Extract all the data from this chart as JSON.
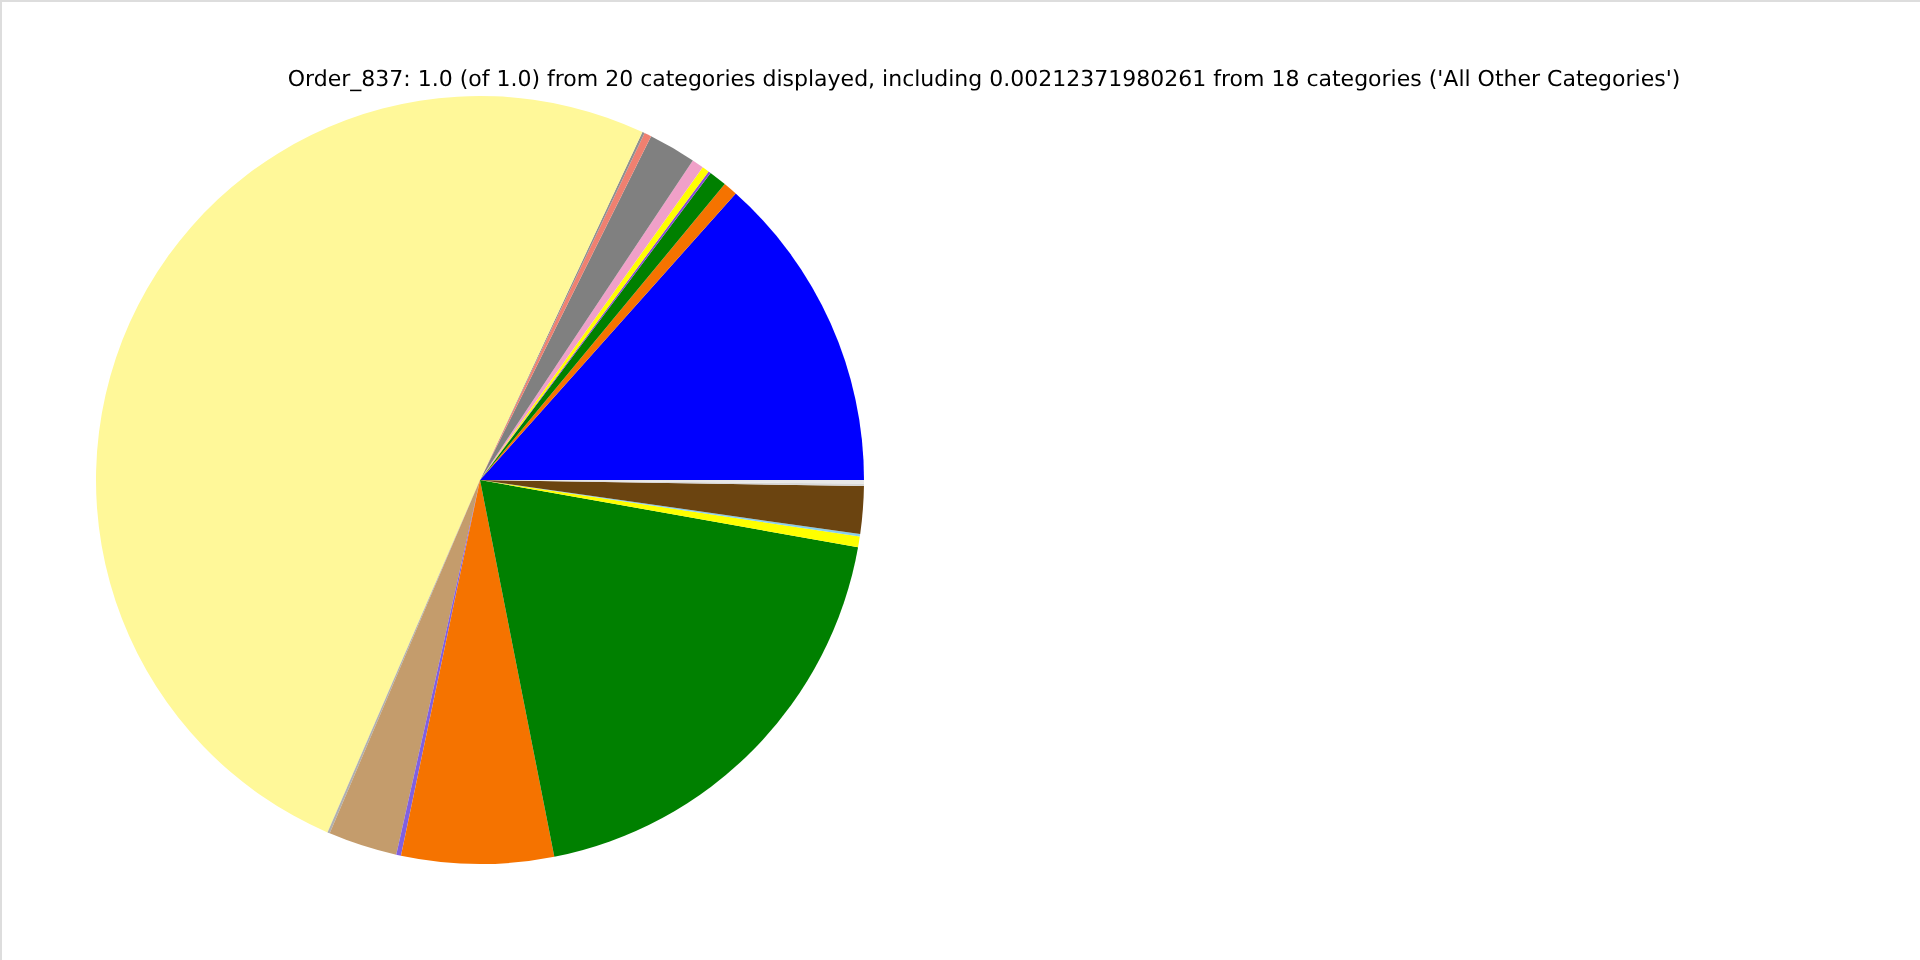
{
  "chart_data": {
    "type": "pie",
    "title": "Order_837: 1.0 (of 1.0) from 20 categories displayed, including 0.00212371980261 from 18 categories ('All Other Categories')",
    "categories": [
      null,
      null,
      null,
      null,
      null,
      null,
      null,
      null,
      null,
      null,
      null,
      null,
      null,
      null,
      null,
      null,
      null,
      null,
      null,
      null
    ],
    "values": [
      13.4,
      0.6,
      0.75,
      0.1,
      0.3,
      0.5,
      2.0,
      0.3,
      0.1,
      50.45,
      0.1,
      2.9,
      0.2,
      6.4,
      19.1,
      0.45,
      0.1,
      2.0,
      0.1,
      0.15
    ],
    "colors": [
      "#0000ff",
      "#f57300",
      "#008000",
      "#8a4bd8",
      "#ffff00",
      "#f0a0c8",
      "#808080",
      "#f08070",
      "#909090",
      "#fff899",
      "#b0b0b0",
      "#c49c6c",
      "#8060e0",
      "#f57300",
      "#008000",
      "#ffff00",
      "#87ceeb",
      "#6b4410",
      "#d8d8d8",
      "#e8e8e8"
    ]
  }
}
